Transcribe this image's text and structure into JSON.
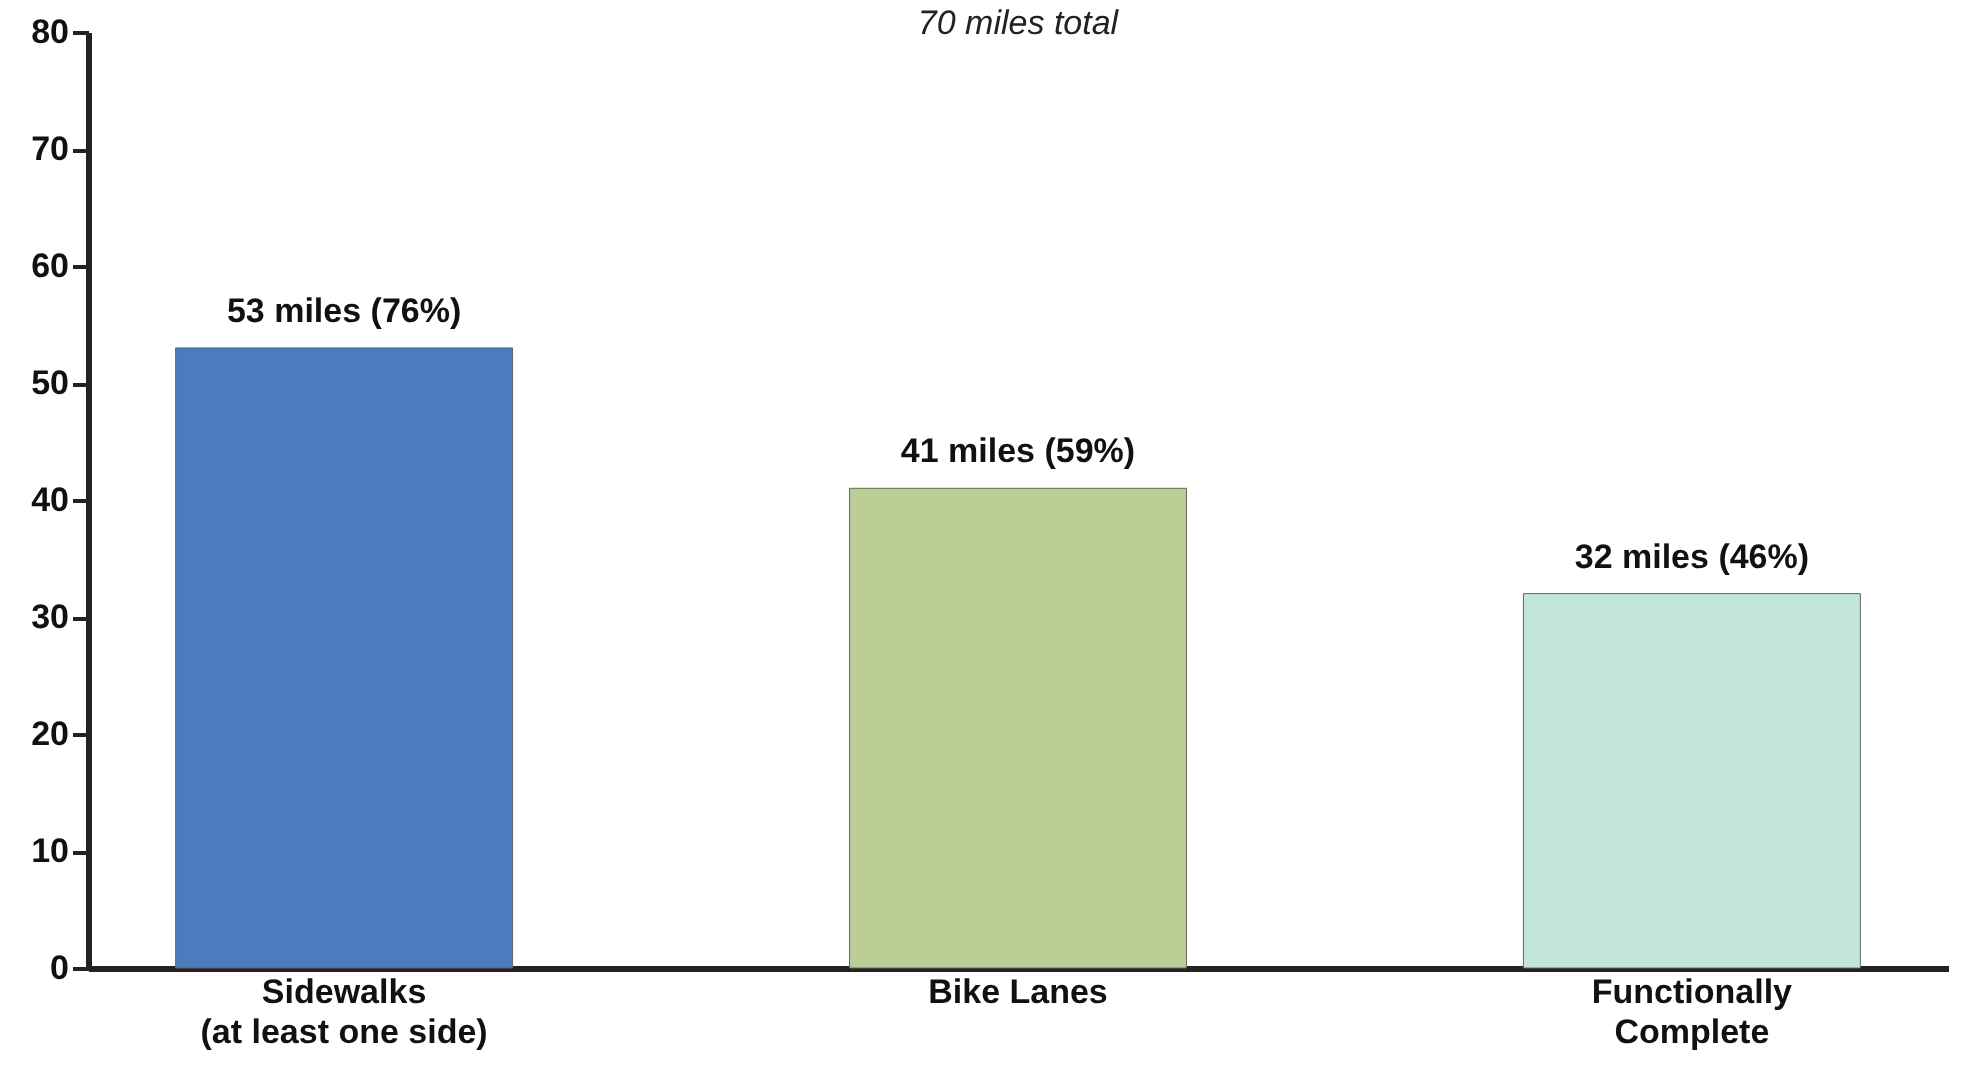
{
  "chart_data": {
    "type": "bar",
    "title": "70 miles total",
    "categories": [
      "Sidewalks\n(at least one side)",
      "Bike Lanes",
      "Functionally\nComplete"
    ],
    "values": [
      53,
      41,
      32
    ],
    "colors": [
      "#4a7cbf",
      "#bccd96",
      "#c1e5da"
    ],
    "value_labels": [
      "53 miles (76%)",
      "41 miles (59%)",
      "32 miles (46%)"
    ],
    "ylim": [
      0,
      80
    ],
    "yticks": [
      0,
      10,
      20,
      30,
      40,
      50,
      60,
      70,
      80
    ],
    "grid": false,
    "legend": false
  }
}
